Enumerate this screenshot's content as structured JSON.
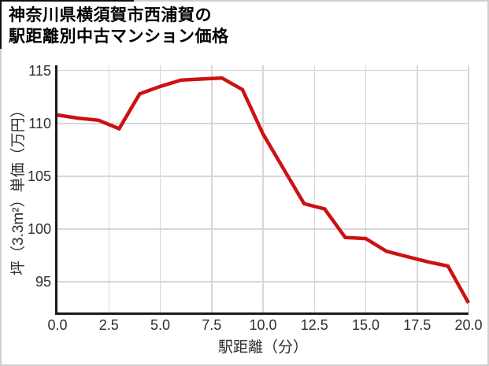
{
  "card": {
    "title_line1": "神奈川県横須賀市西浦賀の",
    "title_line2": "駅距離別中古マンション価格"
  },
  "colors": {
    "line": "#cc1111",
    "grid": "#d7d7d7",
    "spine": "#1a1a1a",
    "tick_text": "#2e2e2e",
    "card_border": "#cfcfcf"
  },
  "chart_data": {
    "type": "line",
    "title": "神奈川県横須賀市西浦賀の駅距離別中古マンション価格",
    "xlabel": "駅距離（分）",
    "ylabel": "坪（3.3m²）単価（万円）",
    "grid": true,
    "legend": "none",
    "xlim": [
      0,
      20
    ],
    "ylim": [
      92.1,
      115.5
    ],
    "x": [
      0,
      1,
      2,
      3,
      4,
      5,
      6,
      7,
      8,
      9,
      10,
      11,
      12,
      13,
      14,
      15,
      16,
      17,
      18,
      19,
      20
    ],
    "values": [
      110.8,
      110.5,
      110.3,
      109.5,
      112.8,
      113.5,
      114.1,
      114.2,
      114.3,
      113.2,
      109.0,
      105.7,
      102.4,
      101.9,
      99.2,
      99.1,
      97.9,
      97.4,
      96.9,
      96.5,
      93.0
    ],
    "x_ticks": [
      {
        "value": 0,
        "label": "0.0"
      },
      {
        "value": 2.5,
        "label": "2.5"
      },
      {
        "value": 5,
        "label": "5.0"
      },
      {
        "value": 7.5,
        "label": "7.5"
      },
      {
        "value": 10,
        "label": "10.0"
      },
      {
        "value": 12.5,
        "label": "12.5"
      },
      {
        "value": 15,
        "label": "15.0"
      },
      {
        "value": 17.5,
        "label": "17.5"
      },
      {
        "value": 20,
        "label": "20.0"
      }
    ],
    "y_ticks": [
      {
        "value": 95,
        "label": "95"
      },
      {
        "value": 100,
        "label": "100"
      },
      {
        "value": 105,
        "label": "105"
      },
      {
        "value": 110,
        "label": "110"
      },
      {
        "value": 115,
        "label": "115"
      }
    ]
  }
}
